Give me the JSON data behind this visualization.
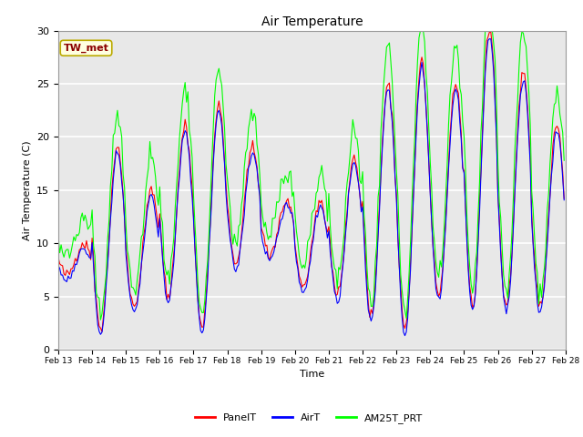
{
  "title": "Air Temperature",
  "ylabel": "Air Temperature (C)",
  "xlabel": "Time",
  "annotation": "TW_met",
  "ylim": [
    0,
    30
  ],
  "xlim": [
    0,
    360
  ],
  "plot_bg_color": "#e8e8e8",
  "series": {
    "PanelT": {
      "color": "red"
    },
    "AirT": {
      "color": "blue"
    },
    "AM25T_PRT": {
      "color": "lime"
    }
  },
  "xtick_labels": [
    "Feb 13",
    "Feb 14",
    "Feb 15",
    "Feb 16",
    "Feb 17",
    "Feb 18",
    "Feb 19",
    "Feb 20",
    "Feb 21",
    "Feb 22",
    "Feb 23",
    "Feb 24",
    "Feb 25",
    "Feb 26",
    "Feb 27",
    "Feb 28"
  ],
  "xtick_positions": [
    0,
    24,
    48,
    72,
    96,
    120,
    144,
    168,
    192,
    216,
    240,
    264,
    288,
    312,
    336,
    360
  ],
  "day_peaks": [
    10,
    19,
    15,
    21,
    23,
    19,
    14,
    14,
    18,
    25,
    27,
    25,
    30,
    26,
    21,
    23
  ],
  "day_mins": [
    7,
    2,
    4,
    5,
    2,
    8,
    9,
    6,
    5,
    3,
    2,
    5,
    4,
    4,
    4,
    5
  ]
}
